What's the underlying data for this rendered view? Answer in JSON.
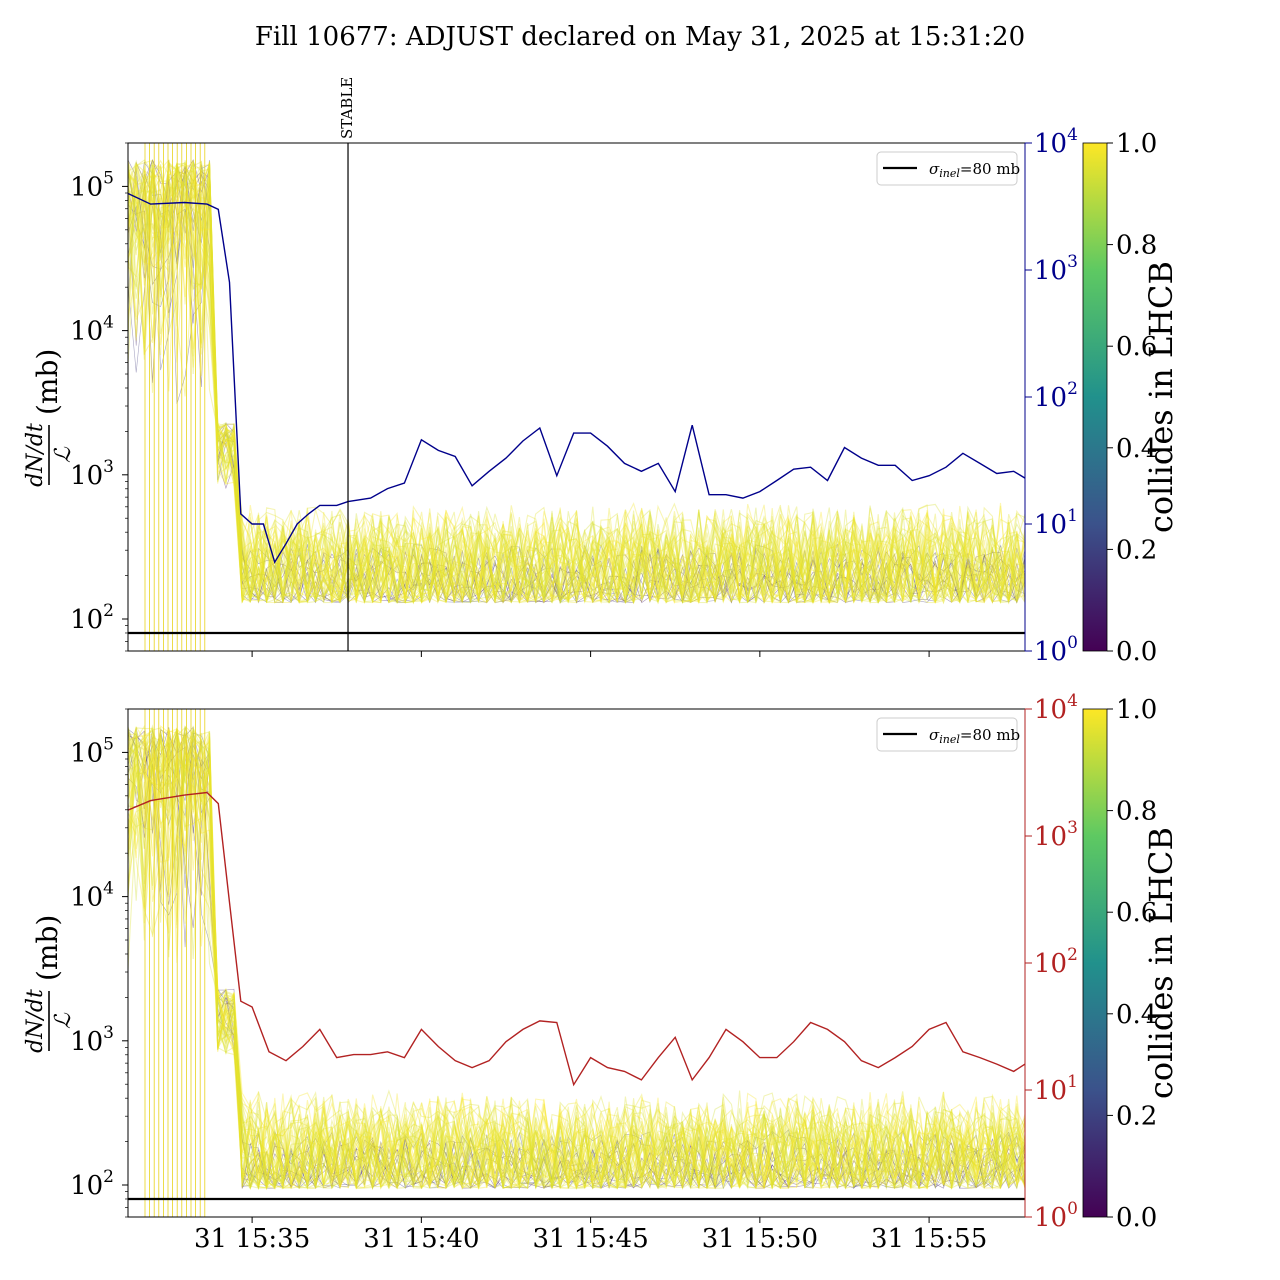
{
  "title": "Fill 10677: ADJUST declared on May 31, 2025 at 15:31:20",
  "colors": {
    "top_line": "#00008b",
    "bottom_line": "#b22222",
    "sigma_line": "#000000",
    "viridis": [
      "#440154",
      "#3b528b",
      "#21918c",
      "#5ec962",
      "#fde725"
    ]
  },
  "chart_data": [
    {
      "type": "line",
      "panel": "top",
      "ylabel_left": {
        "numerator": "dN/dt",
        "denominator": "ℒ",
        "unit": "(mb)"
      },
      "ylim_left": [
        60,
        200000
      ],
      "yscale_left": "log",
      "yticks_left": [
        {
          "value": 100,
          "label": "10",
          "exp": "2"
        },
        {
          "value": 1000,
          "label": "10",
          "exp": "3"
        },
        {
          "value": 10000,
          "label": "10",
          "exp": "4"
        },
        {
          "value": 100000,
          "label": "10",
          "exp": "5"
        }
      ],
      "ylim_right": [
        1,
        10000
      ],
      "yscale_right": "log",
      "yticks_right": [
        {
          "value": 1,
          "label": "10",
          "exp": "0"
        },
        {
          "value": 10,
          "label": "10",
          "exp": "1"
        },
        {
          "value": 100,
          "label": "10",
          "exp": "2"
        },
        {
          "value": 1000,
          "label": "10",
          "exp": "3"
        },
        {
          "value": 10000,
          "label": "10",
          "exp": "4"
        }
      ],
      "xlim": [
        "2025-05-31 15:31:20",
        "2025-05-31 15:57:50"
      ],
      "xticks": [],
      "vline": {
        "x": "2025-05-31 15:37:50",
        "label": "STABLE"
      },
      "hline": {
        "y": 80,
        "legend": "σ_inel=80 mb"
      },
      "legend": {
        "placement": "top-right",
        "label_sym": "σ",
        "label_sub": "inel",
        "label_rest": "=80 mb"
      },
      "colorbar": {
        "label": "collides in LHCB",
        "range": [
          0,
          1
        ],
        "ticks": [
          "0.0",
          "0.2",
          "0.4",
          "0.6",
          "0.8",
          "1.0"
        ]
      },
      "right_series": {
        "x": [
          "15:31:20",
          "15:32:00",
          "15:33:00",
          "15:33:40",
          "15:34:00",
          "15:34:20",
          "15:34:40",
          "15:35:00",
          "15:35:20",
          "15:35:40",
          "15:36:00",
          "15:36:20",
          "15:36:40",
          "15:37:00",
          "15:37:30",
          "15:37:50",
          "15:38:30",
          "15:39:00",
          "15:39:30",
          "15:40:00",
          "15:40:30",
          "15:41:00",
          "15:41:30",
          "15:42:00",
          "15:42:30",
          "15:43:00",
          "15:43:30",
          "15:44:00",
          "15:44:30",
          "15:45:00",
          "15:45:30",
          "15:46:00",
          "15:46:30",
          "15:47:00",
          "15:47:30",
          "15:48:00",
          "15:48:30",
          "15:49:00",
          "15:49:30",
          "15:50:00",
          "15:50:30",
          "15:51:00",
          "15:51:30",
          "15:52:00",
          "15:52:30",
          "15:53:00",
          "15:53:30",
          "15:54:00",
          "15:54:30",
          "15:55:00",
          "15:55:30",
          "15:56:00",
          "15:56:30",
          "15:57:00",
          "15:57:30",
          "15:57:50"
        ],
        "y": [
          4000,
          3300,
          3400,
          3300,
          3000,
          800,
          12,
          10,
          10,
          5,
          7,
          10,
          12,
          14,
          14,
          15,
          16,
          19,
          21,
          46,
          38,
          34,
          20,
          26,
          33,
          45,
          57,
          24,
          52,
          52,
          41,
          30,
          26,
          30,
          18,
          60,
          17,
          17,
          16,
          18,
          22,
          27,
          28,
          22,
          40,
          33,
          29,
          29,
          22,
          24,
          28,
          36,
          30,
          25,
          26,
          23
        ]
      }
    },
    {
      "type": "line",
      "panel": "bottom",
      "ylabel_left": {
        "numerator": "dN/dt",
        "denominator": "ℒ",
        "unit": "(mb)"
      },
      "ylim_left": [
        60,
        200000
      ],
      "yscale_left": "log",
      "yticks_left": [
        {
          "value": 100,
          "label": "10",
          "exp": "2"
        },
        {
          "value": 1000,
          "label": "10",
          "exp": "3"
        },
        {
          "value": 10000,
          "label": "10",
          "exp": "4"
        },
        {
          "value": 100000,
          "label": "10",
          "exp": "5"
        }
      ],
      "ylim_right": [
        1,
        10000
      ],
      "yscale_right": "log",
      "yticks_right": [
        {
          "value": 1,
          "label": "10",
          "exp": "0"
        },
        {
          "value": 10,
          "label": "10",
          "exp": "1"
        },
        {
          "value": 100,
          "label": "10",
          "exp": "2"
        },
        {
          "value": 1000,
          "label": "10",
          "exp": "3"
        },
        {
          "value": 10000,
          "label": "10",
          "exp": "4"
        }
      ],
      "xlim": [
        "2025-05-31 15:31:20",
        "2025-05-31 15:57:50"
      ],
      "xticks": [
        {
          "x": "2025-05-31 15:35:00",
          "label": "31 15:35"
        },
        {
          "x": "2025-05-31 15:40:00",
          "label": "31 15:40"
        },
        {
          "x": "2025-05-31 15:45:00",
          "label": "31 15:45"
        },
        {
          "x": "2025-05-31 15:50:00",
          "label": "31 15:50"
        },
        {
          "x": "2025-05-31 15:55:00",
          "label": "31 15:55"
        }
      ],
      "hline": {
        "y": 80,
        "legend": "σ_inel=80 mb"
      },
      "legend": {
        "placement": "top-right",
        "label_sym": "σ",
        "label_sub": "inel",
        "label_rest": "=80 mb"
      },
      "colorbar": {
        "label": "collides in LHCB",
        "range": [
          0,
          1
        ],
        "ticks": [
          "0.0",
          "0.2",
          "0.4",
          "0.6",
          "0.8",
          "1.0"
        ]
      },
      "right_series": {
        "x": [
          "15:31:20",
          "15:32:00",
          "15:33:00",
          "15:33:40",
          "15:34:00",
          "15:34:20",
          "15:34:40",
          "15:35:00",
          "15:35:30",
          "15:36:00",
          "15:36:30",
          "15:37:00",
          "15:37:30",
          "15:38:00",
          "15:38:30",
          "15:39:00",
          "15:39:30",
          "15:40:00",
          "15:40:30",
          "15:41:00",
          "15:41:30",
          "15:42:00",
          "15:42:30",
          "15:43:00",
          "15:43:30",
          "15:44:00",
          "15:44:30",
          "15:45:00",
          "15:45:30",
          "15:46:00",
          "15:46:30",
          "15:47:00",
          "15:47:30",
          "15:48:00",
          "15:48:30",
          "15:49:00",
          "15:49:30",
          "15:50:00",
          "15:50:30",
          "15:51:00",
          "15:51:30",
          "15:52:00",
          "15:52:30",
          "15:53:00",
          "15:53:30",
          "15:54:00",
          "15:54:30",
          "15:55:00",
          "15:55:30",
          "15:56:00",
          "15:56:30",
          "15:57:00",
          "15:57:30",
          "15:57:50"
        ],
        "y": [
          1600,
          1900,
          2100,
          2200,
          1800,
          300,
          50,
          45,
          20,
          17,
          22,
          30,
          18,
          19,
          19,
          20,
          18,
          30,
          22,
          17,
          15,
          17,
          24,
          30,
          35,
          34,
          11,
          18,
          15,
          14,
          12,
          18,
          26,
          12,
          18,
          30,
          24,
          18,
          18,
          24,
          34,
          30,
          24,
          17,
          15,
          18,
          22,
          30,
          34,
          20,
          18,
          16,
          14,
          16
        ]
      }
    }
  ]
}
